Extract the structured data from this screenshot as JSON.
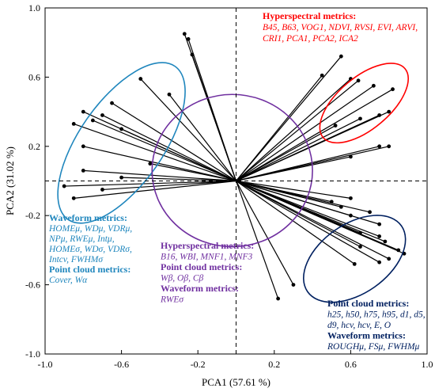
{
  "chart_data": {
    "type": "scatter",
    "subtype": "biplot",
    "title": "",
    "xlabel": "PCA1 (57.61 %)",
    "ylabel": "PCA2 (31.02 %)",
    "xlim": [
      -1.0,
      1.0
    ],
    "ylim": [
      -1.0,
      1.0
    ],
    "x_ticks": [
      "-1.0",
      "-0.6",
      "-0.2",
      "0.2",
      "0.6",
      "1.0"
    ],
    "y_ticks": [
      "1.0",
      "0.6",
      "0.2",
      "-0.2",
      "-0.6",
      "-1.0"
    ],
    "x_tick_values": [
      -1.0,
      -0.6,
      -0.2,
      0.2,
      0.6,
      1.0
    ],
    "y_tick_values": [
      1.0,
      0.6,
      0.2,
      -0.2,
      -0.6,
      -1.0
    ],
    "origin": [
      0.0,
      0.0
    ],
    "reference_lines": {
      "x": 0.0,
      "y": 0.0,
      "style": "dashed"
    },
    "groups": [
      {
        "key": "waveform_pointcloud_left",
        "color": "#1f86bd",
        "ellipse": {
          "cx": -0.6,
          "cy": 0.22,
          "rx": 0.22,
          "ry": 0.54,
          "rotation_deg": 35
        },
        "labels": [
          {
            "text": "Waveform metrics:",
            "style": "heading"
          },
          {
            "text": "HOMEμ, WDμ, VDRμ,",
            "style": "body"
          },
          {
            "text": "NPμ, RWEμ, Intμ,",
            "style": "body"
          },
          {
            "text": "HOMEσ, WDσ, VDRσ,",
            "style": "body"
          },
          {
            "text": "Intcv, FWHMσ",
            "style": "body"
          },
          {
            "text": "Point cloud metrics:",
            "style": "heading"
          },
          {
            "text": "Cover, Wα",
            "style": "body"
          }
        ],
        "points": [
          {
            "x": -0.27,
            "y": 0.85
          },
          {
            "x": -0.25,
            "y": 0.82
          },
          {
            "x": -0.23,
            "y": 0.73
          },
          {
            "x": -0.5,
            "y": 0.59
          },
          {
            "x": -0.35,
            "y": 0.5
          },
          {
            "x": -0.65,
            "y": 0.45
          },
          {
            "x": -0.8,
            "y": 0.4
          },
          {
            "x": -0.7,
            "y": 0.38
          },
          {
            "x": -0.75,
            "y": 0.35
          },
          {
            "x": -0.85,
            "y": 0.33
          },
          {
            "x": -0.6,
            "y": 0.3
          },
          {
            "x": -0.8,
            "y": 0.2
          },
          {
            "x": -0.45,
            "y": 0.1
          },
          {
            "x": -0.8,
            "y": 0.06
          },
          {
            "x": -0.6,
            "y": 0.02
          },
          {
            "x": -0.9,
            "y": -0.03
          },
          {
            "x": -0.7,
            "y": -0.05
          },
          {
            "x": -0.85,
            "y": -0.1
          }
        ]
      },
      {
        "key": "hyperspectral_red",
        "color": "#ff0000",
        "ellipse": {
          "cx": 0.67,
          "cy": 0.45,
          "rx": 0.28,
          "ry": 0.15,
          "rotation_deg": -40
        },
        "labels": [
          {
            "text": "Hyperspectral metrics:",
            "style": "heading"
          },
          {
            "text": "B45, B63, VOG1, NDVI, RVSI, EVI, ARVI,",
            "style": "body"
          },
          {
            "text": "CRI1, PCA1, PCA2, ICA2",
            "style": "body"
          }
        ],
        "points": [
          {
            "x": 0.55,
            "y": 0.72
          },
          {
            "x": 0.45,
            "y": 0.61
          },
          {
            "x": 0.6,
            "y": 0.59
          },
          {
            "x": 0.64,
            "y": 0.58
          },
          {
            "x": 0.72,
            "y": 0.55
          },
          {
            "x": 0.82,
            "y": 0.53
          },
          {
            "x": 0.8,
            "y": 0.4
          },
          {
            "x": 0.75,
            "y": 0.38
          },
          {
            "x": 0.65,
            "y": 0.36
          },
          {
            "x": 0.52,
            "y": 0.32
          },
          {
            "x": 0.8,
            "y": 0.2
          },
          {
            "x": 0.75,
            "y": 0.2
          },
          {
            "x": 0.6,
            "y": 0.14
          }
        ]
      },
      {
        "key": "hyperspectral_purple",
        "color": "#7030a0",
        "ellipse": {
          "cx": -0.02,
          "cy": 0.06,
          "rx": 0.42,
          "ry": 0.44,
          "rotation_deg": 0
        },
        "labels": [
          {
            "text": "Hyperspectral metrics:",
            "style": "heading"
          },
          {
            "text": "B16, WBI, MNF1, MNF3",
            "style": "body"
          },
          {
            "text": "Point cloud metrics:",
            "style": "heading"
          },
          {
            "text": "Wβ, Oβ, Cβ",
            "style": "body"
          },
          {
            "text": "Waveform metrics:",
            "style": "heading"
          },
          {
            "text": "RWEσ",
            "style": "body"
          }
        ],
        "points": []
      },
      {
        "key": "pointcloud_waveform_navy",
        "color": "#002060",
        "ellipse": {
          "cx": 0.62,
          "cy": -0.45,
          "rx": 0.3,
          "ry": 0.2,
          "rotation_deg": -35
        },
        "labels": [
          {
            "text": "Point cloud metrics:",
            "style": "heading"
          },
          {
            "text": "h25, h50, h75, h95, d1, d5,",
            "style": "body"
          },
          {
            "text": "d9, hcv, hcv, E, O",
            "style": "body"
          },
          {
            "text": "Waveform metrics:",
            "style": "heading"
          },
          {
            "text": "ROUGHμ, FSμ, FWHMμ",
            "style": "body"
          }
        ],
        "points": [
          {
            "x": 0.6,
            "y": -0.1
          },
          {
            "x": 0.5,
            "y": -0.12
          },
          {
            "x": 0.55,
            "y": -0.15
          },
          {
            "x": 0.7,
            "y": -0.18
          },
          {
            "x": 0.6,
            "y": -0.2
          },
          {
            "x": 0.75,
            "y": -0.25
          },
          {
            "x": 0.65,
            "y": -0.3
          },
          {
            "x": 0.75,
            "y": -0.32
          },
          {
            "x": 0.78,
            "y": -0.35
          },
          {
            "x": 0.65,
            "y": -0.38
          },
          {
            "x": 0.85,
            "y": -0.4
          },
          {
            "x": 0.88,
            "y": -0.42
          },
          {
            "x": 0.8,
            "y": -0.45
          },
          {
            "x": 0.75,
            "y": -0.47
          },
          {
            "x": 0.62,
            "y": -0.48
          },
          {
            "x": 0.22,
            "y": -0.68
          },
          {
            "x": 0.3,
            "y": -0.6
          }
        ]
      }
    ]
  }
}
